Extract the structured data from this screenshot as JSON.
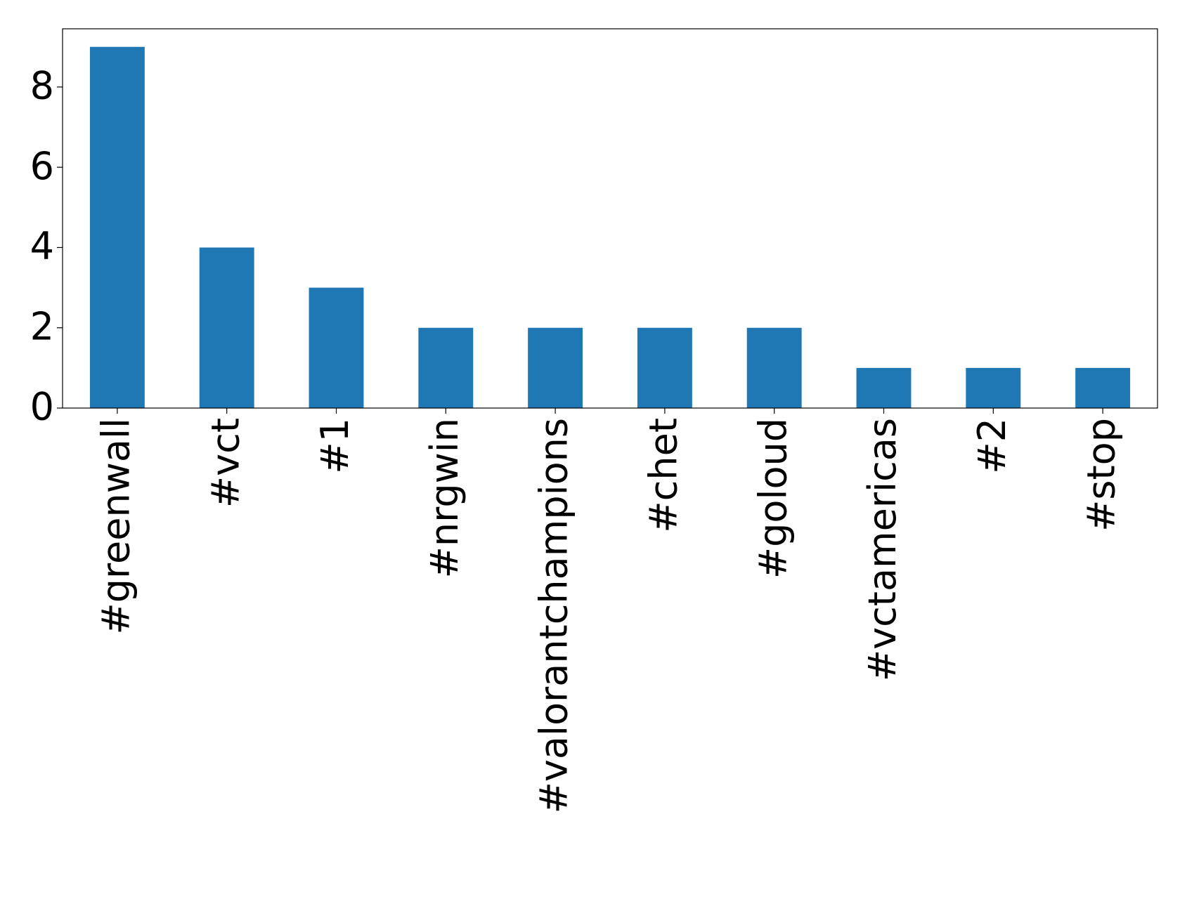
{
  "chart_data": {
    "type": "bar",
    "categories": [
      "#greenwall",
      "#vct",
      "#1",
      "#nrgwin",
      "#valorantchampions",
      "#chet",
      "#goloud",
      "#vctamericas",
      "#2",
      "#stop"
    ],
    "values": [
      9,
      4,
      3,
      2,
      2,
      2,
      2,
      1,
      1,
      1
    ],
    "color": "#1f77b4",
    "ylim": [
      0,
      9.45
    ],
    "yticks": [
      0,
      2,
      4,
      6,
      8
    ],
    "grid": false
  }
}
